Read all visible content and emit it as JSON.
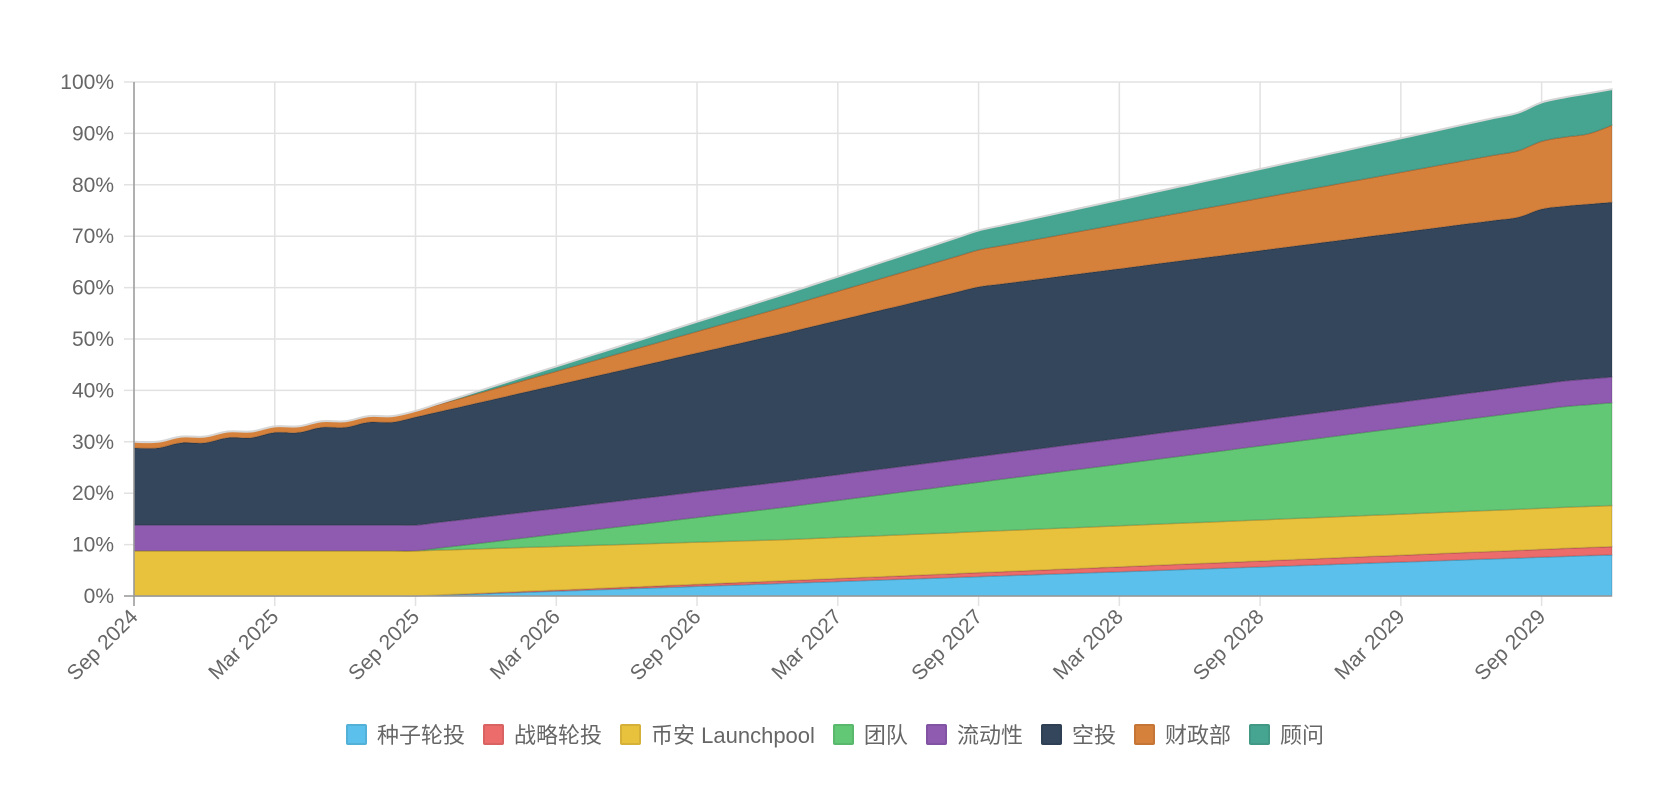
{
  "chart_data": {
    "type": "area",
    "stacked": true,
    "x": [
      "2024-09",
      "2024-10",
      "2024-11",
      "2024-12",
      "2025-01",
      "2025-02",
      "2025-03",
      "2025-04",
      "2025-05",
      "2025-06",
      "2025-07",
      "2025-08",
      "2025-09",
      "2025-10",
      "2025-11",
      "2025-12",
      "2026-01",
      "2026-02",
      "2026-03",
      "2026-04",
      "2026-05",
      "2026-06",
      "2026-07",
      "2026-08",
      "2026-09",
      "2026-10",
      "2026-11",
      "2026-12",
      "2027-01",
      "2027-02",
      "2027-03",
      "2027-04",
      "2027-05",
      "2027-06",
      "2027-07",
      "2027-08",
      "2027-09",
      "2027-10",
      "2027-11",
      "2027-12",
      "2028-01",
      "2028-02",
      "2028-03",
      "2028-04",
      "2028-05",
      "2028-06",
      "2028-07",
      "2028-08",
      "2028-09",
      "2028-10",
      "2028-11",
      "2028-12",
      "2029-01",
      "2029-02",
      "2029-03",
      "2029-04",
      "2029-05",
      "2029-06",
      "2029-07",
      "2029-08",
      "2029-09",
      "2029-10",
      "2029-11",
      "2029-12"
    ],
    "x_tick_labels": [
      "Sep 2024",
      "Mar 2025",
      "Sep 2025",
      "Mar 2026",
      "Sep 2026",
      "Mar 2027",
      "Sep 2027",
      "Mar 2028",
      "Sep 2028",
      "Mar 2029",
      "Sep 2029"
    ],
    "y_tick_labels": [
      "0%",
      "10%",
      "20%",
      "30%",
      "40%",
      "50%",
      "60%",
      "70%",
      "80%",
      "90%",
      "100%"
    ],
    "ylim": [
      0,
      100
    ],
    "y_unit": "%",
    "grid": true,
    "legend_position": "bottom",
    "series": [
      {
        "name": "种子轮投",
        "color": "#5bc0eb",
        "values": [
          0,
          0,
          0,
          0,
          0,
          0,
          0,
          0,
          0,
          0,
          0,
          0,
          0,
          0.16,
          0.31,
          0.47,
          0.63,
          0.79,
          0.94,
          1.1,
          1.26,
          1.42,
          1.57,
          1.73,
          1.89,
          2.05,
          2.2,
          2.36,
          2.52,
          2.68,
          2.83,
          2.99,
          3.15,
          3.31,
          3.46,
          3.62,
          3.78,
          3.94,
          4.09,
          4.25,
          4.41,
          4.57,
          4.72,
          4.88,
          5.04,
          5.2,
          5.35,
          5.51,
          5.67,
          5.83,
          5.98,
          6.14,
          6.3,
          6.46,
          6.61,
          6.77,
          6.93,
          7.09,
          7.24,
          7.4,
          7.56,
          7.72,
          7.87,
          8.0
        ]
      },
      {
        "name": "战略轮投",
        "color": "#ec6b6b",
        "values": [
          0,
          0,
          0,
          0,
          0,
          0,
          0,
          0,
          0,
          0,
          0,
          0,
          0,
          0.03,
          0.06,
          0.09,
          0.13,
          0.16,
          0.19,
          0.22,
          0.25,
          0.28,
          0.31,
          0.35,
          0.38,
          0.41,
          0.44,
          0.47,
          0.5,
          0.54,
          0.57,
          0.6,
          0.63,
          0.66,
          0.69,
          0.72,
          0.76,
          0.79,
          0.82,
          0.85,
          0.88,
          0.91,
          0.94,
          0.98,
          1.01,
          1.04,
          1.07,
          1.1,
          1.13,
          1.17,
          1.2,
          1.23,
          1.26,
          1.29,
          1.32,
          1.35,
          1.39,
          1.42,
          1.45,
          1.48,
          1.51,
          1.54,
          1.57,
          1.6
        ]
      },
      {
        "name": "币安 Launchpool",
        "color": "#e8c23c",
        "values": [
          8.8,
          8.8,
          8.8,
          8.8,
          8.8,
          8.8,
          8.8,
          8.8,
          8.8,
          8.8,
          8.8,
          8.8,
          8.8,
          8.75,
          8.7,
          8.65,
          8.6,
          8.55,
          8.5,
          8.45,
          8.4,
          8.35,
          8.3,
          8.25,
          8.2,
          8.15,
          8.1,
          8.05,
          8.0,
          8.0,
          8.0,
          8.0,
          8.0,
          8.0,
          8.0,
          8.0,
          8.0,
          8.0,
          8.0,
          8.0,
          8.0,
          8.0,
          8.0,
          8.0,
          8.0,
          8.0,
          8.0,
          8.0,
          8.0,
          8.0,
          8.0,
          8.0,
          8.0,
          8.0,
          8.0,
          8.0,
          8.0,
          8.0,
          8.0,
          8.0,
          8.0,
          8.0,
          8.0,
          8.0
        ]
      },
      {
        "name": "团队",
        "color": "#62c876",
        "values": [
          0,
          0,
          0,
          0,
          0,
          0,
          0,
          0,
          0,
          0,
          0,
          0,
          0,
          0.4,
          0.8,
          1.2,
          1.6,
          2.0,
          2.4,
          2.8,
          3.2,
          3.6,
          4.0,
          4.4,
          4.8,
          5.2,
          5.6,
          6.0,
          6.4,
          6.8,
          7.2,
          7.6,
          8.0,
          8.4,
          8.8,
          9.2,
          9.6,
          10.0,
          10.4,
          10.8,
          11.2,
          11.6,
          12.0,
          12.4,
          12.8,
          13.2,
          13.6,
          14.0,
          14.4,
          14.8,
          15.2,
          15.6,
          16.0,
          16.4,
          16.8,
          17.2,
          17.6,
          18.0,
          18.4,
          18.8,
          19.2,
          19.6,
          19.8,
          20.0
        ]
      },
      {
        "name": "流动性",
        "color": "#8e5bb0",
        "values": [
          5,
          5,
          5,
          5,
          5,
          5,
          5,
          5,
          5,
          5,
          5,
          5,
          5,
          5,
          5,
          5,
          5,
          5,
          5,
          5,
          5,
          5,
          5,
          5,
          5,
          5,
          5,
          5,
          5,
          5,
          5,
          5,
          5,
          5,
          5,
          5,
          5,
          5,
          5,
          5,
          5,
          5,
          5,
          5,
          5,
          5,
          5,
          5,
          5,
          5,
          5,
          5,
          5,
          5,
          5,
          5,
          5,
          5,
          5,
          5,
          5,
          5,
          5,
          5
        ]
      },
      {
        "name": "空投",
        "color": "#34465c",
        "values": [
          15,
          15,
          16,
          16,
          17,
          17,
          18,
          18,
          19,
          19,
          20,
          20,
          21,
          21.5,
          22,
          22.5,
          23,
          23.5,
          24,
          24.5,
          25,
          25.5,
          26,
          26.5,
          27,
          27.5,
          28,
          28.5,
          29,
          29.5,
          30,
          30.5,
          31,
          31.5,
          32,
          32.5,
          33,
          33,
          33,
          33,
          33,
          33,
          33,
          33,
          33,
          33,
          33,
          33,
          33,
          33,
          33,
          33,
          33,
          33,
          33,
          33,
          33,
          33,
          33,
          33,
          34,
          34,
          34,
          34
        ]
      },
      {
        "name": "财政部",
        "color": "#d6813b",
        "values": [
          1.2,
          1.2,
          1.2,
          1.2,
          1.2,
          1.2,
          1.2,
          1.2,
          1.2,
          1.2,
          1.2,
          1.2,
          1.2,
          1.45,
          1.7,
          1.95,
          2.2,
          2.45,
          2.7,
          2.95,
          3.2,
          3.45,
          3.7,
          3.95,
          4.2,
          4.45,
          4.7,
          4.95,
          5.2,
          5.45,
          5.7,
          5.95,
          6.2,
          6.45,
          6.7,
          6.95,
          7.2,
          7.45,
          7.7,
          7.95,
          8.2,
          8.45,
          8.7,
          8.95,
          9.2,
          9.45,
          9.7,
          9.95,
          10.2,
          10.45,
          10.7,
          10.95,
          11.2,
          11.45,
          11.7,
          11.95,
          12.2,
          12.45,
          12.7,
          12.95,
          13.2,
          13.45,
          13.7,
          15.0
        ]
      },
      {
        "name": "顾问",
        "color": "#46a591",
        "values": [
          0,
          0,
          0,
          0,
          0,
          0,
          0,
          0,
          0,
          0,
          0,
          0,
          0,
          0.16,
          0.31,
          0.47,
          0.63,
          0.79,
          0.94,
          1.1,
          1.26,
          1.42,
          1.57,
          1.73,
          1.89,
          2.05,
          2.2,
          2.36,
          2.52,
          2.68,
          2.83,
          2.99,
          3.15,
          3.31,
          3.46,
          3.62,
          3.78,
          3.94,
          4.09,
          4.25,
          4.41,
          4.57,
          4.72,
          4.88,
          5.04,
          5.2,
          5.35,
          5.51,
          5.67,
          5.83,
          5.98,
          6.14,
          6.3,
          6.46,
          6.61,
          6.77,
          6.93,
          7.09,
          7.24,
          7.4,
          7.56,
          7.72,
          7.87,
          7.0
        ]
      }
    ]
  }
}
